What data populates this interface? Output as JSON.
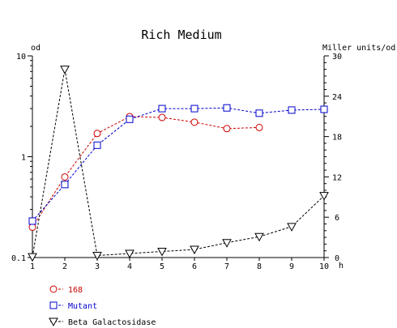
{
  "chart_data": {
    "type": "line",
    "title": "Rich Medium",
    "xlabel": "h",
    "ylabel_left": "od",
    "ylabel_right": "Miller units/od",
    "x": [
      1,
      2,
      3,
      4,
      5,
      6,
      7,
      8,
      9,
      10
    ],
    "x_ticks": [
      "1",
      "2",
      "3",
      "4",
      "5",
      "6",
      "7",
      "8",
      "9",
      "10"
    ],
    "xlim": [
      1,
      10
    ],
    "y_left_scale": "log",
    "y_left_lim": [
      0.1,
      10
    ],
    "y_left_ticks": [
      "0.1",
      "1",
      "10"
    ],
    "y_right_lim": [
      0,
      30
    ],
    "y_right_ticks": [
      "0",
      "6",
      "12",
      "18",
      "24",
      "30"
    ],
    "grid": false,
    "legend_position": "bottom-left",
    "series": [
      {
        "name": "168",
        "axis": "left",
        "color": "#cc0000",
        "marker": "circle",
        "line": "dashed",
        "x": [
          1,
          2,
          3,
          4,
          5,
          6,
          7,
          8
        ],
        "y": [
          0.2,
          0.63,
          1.7,
          2.5,
          2.45,
          2.2,
          1.9,
          1.95
        ]
      },
      {
        "name": "Mutant",
        "axis": "left",
        "color": "#0000cc",
        "marker": "square",
        "line": "dashed",
        "x": [
          1,
          2,
          3,
          4,
          5,
          6,
          7,
          8,
          9,
          10
        ],
        "y": [
          0.23,
          0.53,
          1.3,
          2.35,
          3.0,
          3.0,
          3.05,
          2.7,
          2.9,
          2.95
        ]
      },
      {
        "name": "Beta Galactosidase",
        "axis": "right",
        "color": "#000000",
        "marker": "triangle-down",
        "line": "dashed",
        "x": [
          1,
          2,
          3,
          4,
          5,
          6,
          7,
          8,
          9,
          10
        ],
        "y": [
          0.1,
          28,
          0.3,
          0.6,
          0.9,
          1.2,
          2.2,
          3.1,
          4.6,
          9.2
        ]
      }
    ]
  }
}
